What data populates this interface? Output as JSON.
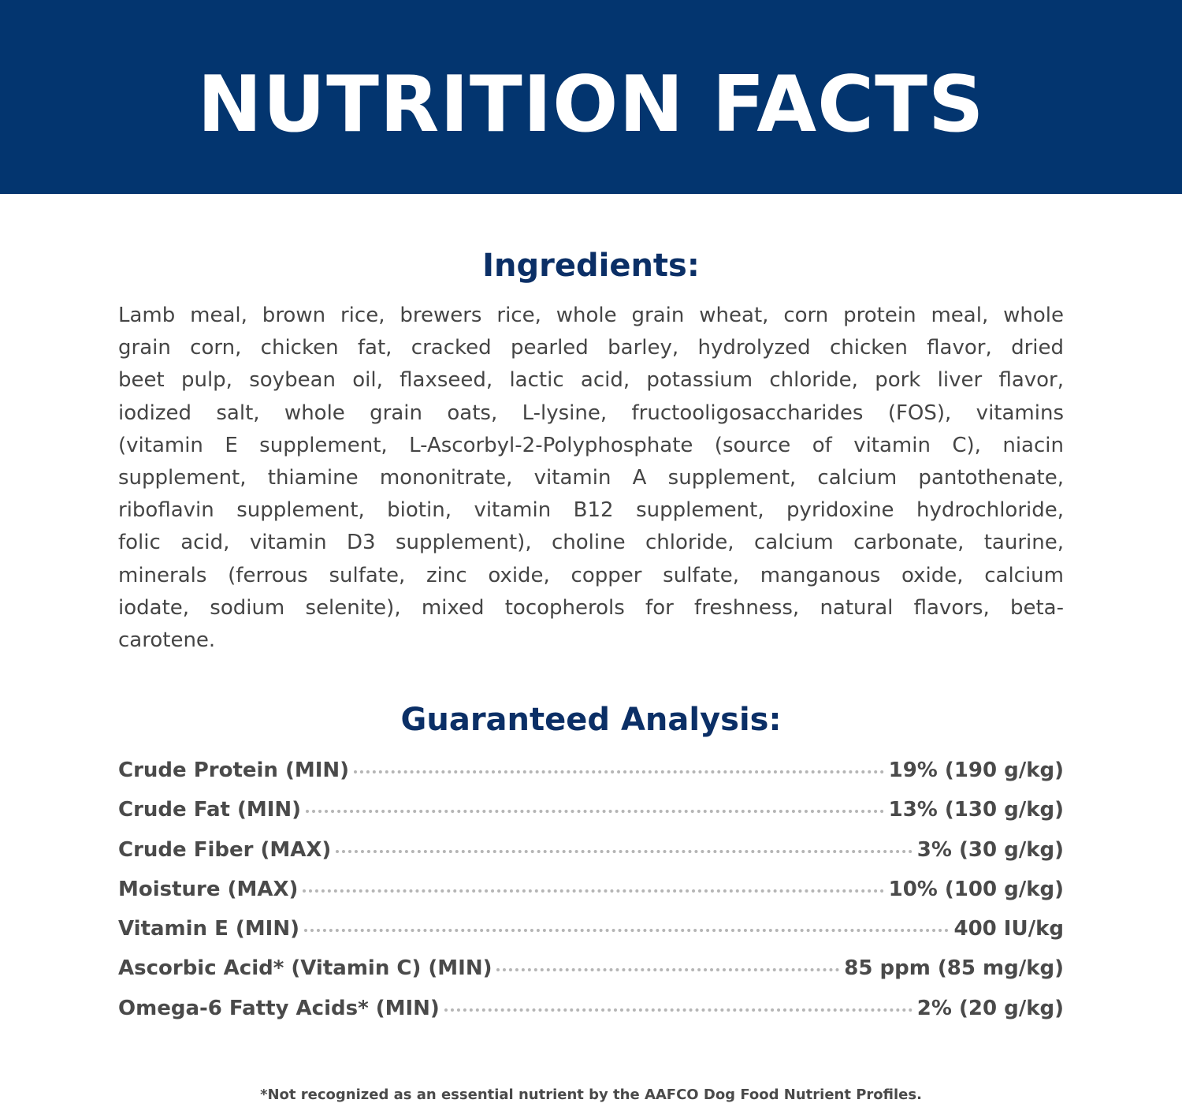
{
  "header": {
    "title": "NUTRITION FACTS",
    "background_color": "#03356f"
  },
  "ingredients": {
    "title": "Ingredients:",
    "lines": [
      "Lamb meal, brown rice, brewers rice, whole grain wheat, corn protein meal, whole",
      "grain corn, chicken fat, cracked pearled barley, hydrolyzed chicken flavor, dried",
      "beet pulp, soybean oil, flaxseed, lactic acid, potassium chloride, pork liver flavor,",
      "iodized salt, whole grain oats, L-lysine, fructooligosaccharides (FOS), vitamins",
      "(vitamin E supplement, L-Ascorbyl-2-Polyphosphate (source of vitamin C), niacin",
      "supplement, thiamine mononitrate, vitamin A supplement, calcium pantothenate,",
      "riboflavin supplement, biotin, vitamin B12 supplement, pyridoxine hydrochloride,",
      "folic acid, vitamin D3 supplement), choline chloride, calcium carbonate, taurine,",
      "minerals (ferrous sulfate, zinc oxide, copper sulfate, manganous oxide, calcium",
      "iodate, sodium selenite), mixed tocopherols for freshness, natural flavors, beta-",
      "carotene."
    ]
  },
  "analysis": {
    "title": "Guaranteed Analysis:",
    "rows": [
      {
        "label": "Crude Protein (MIN)",
        "value": "19% (190 g/kg)"
      },
      {
        "label": "Crude Fat (MIN)",
        "value": "13% (130 g/kg)"
      },
      {
        "label": "Crude Fiber (MAX)",
        "value": "3% (30 g/kg)"
      },
      {
        "label": "Moisture (MAX)",
        "value": "10% (100 g/kg)"
      },
      {
        "label": "Vitamin E (MIN)",
        "value": "400 IU/kg"
      },
      {
        "label": "Ascorbic Acid* (Vitamin C) (MIN)",
        "value": "85 ppm (85 mg/kg)"
      },
      {
        "label": "Omega-6 Fatty Acids* (MIN)",
        "value": "2% (20 g/kg)"
      }
    ]
  },
  "footnote": "*Not recognized as an essential nutrient by the AAFCO Dog Food Nutrient Profiles."
}
